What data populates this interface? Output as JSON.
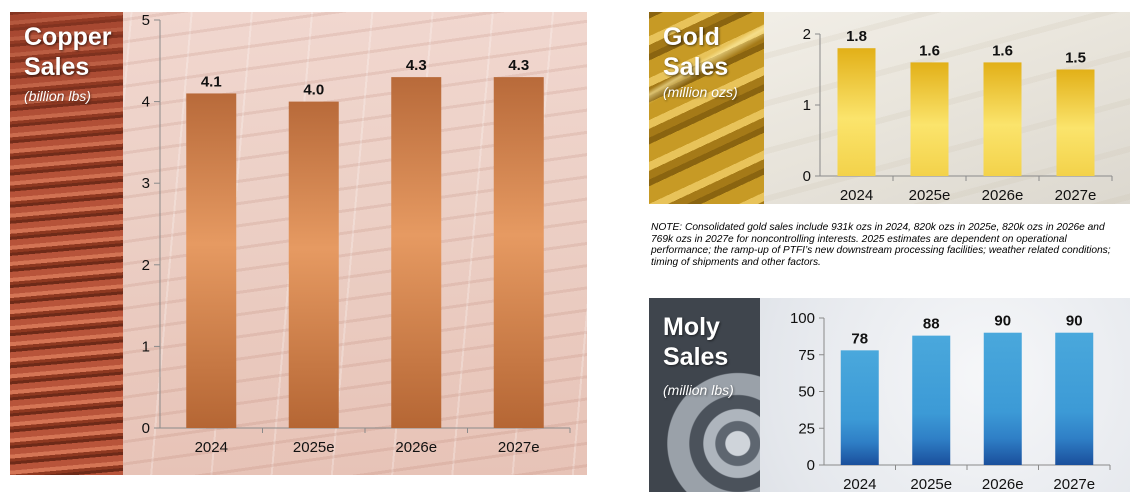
{
  "note": "NOTE: Consolidated gold sales include 931k ozs in 2024, 820k ozs in 2025e, 820k ozs in 2026e and 769k ozs in 2027e for noncontrolling interests. 2025 estimates are dependent on operational performance; the ramp-up of PTFI’s new downstream processing facilities; weather related conditions; timing of shipments and other factors.",
  "panels": {
    "copper": {
      "title_line1": "Copper",
      "title_line2": "Sales",
      "unit": "(billion lbs)"
    },
    "gold": {
      "title_line1": "Gold",
      "title_line2": "Sales",
      "unit": "(million ozs)"
    },
    "moly": {
      "title_line1": "Moly",
      "title_line2": "Sales",
      "unit": "(million lbs)"
    }
  },
  "chart_data": [
    {
      "id": "copper",
      "type": "bar",
      "categories": [
        "2024",
        "2025e",
        "2026e",
        "2027e"
      ],
      "values": [
        4.1,
        4.0,
        4.3,
        4.3
      ],
      "value_labels": [
        "4.1",
        "4.0",
        "4.3",
        "4.3"
      ],
      "ylim": [
        0,
        5
      ],
      "yticks": [
        0,
        1,
        2,
        3,
        4,
        5
      ],
      "bar_color": "#c57a45",
      "bar_color_light": "#e7a06b",
      "bar_color_dark": "#a65a2f",
      "grid": false
    },
    {
      "id": "gold",
      "type": "bar",
      "categories": [
        "2024",
        "2025e",
        "2026e",
        "2027e"
      ],
      "values": [
        1.8,
        1.6,
        1.6,
        1.5
      ],
      "value_labels": [
        "1.8",
        "1.6",
        "1.6",
        "1.5"
      ],
      "ylim": [
        0,
        2
      ],
      "yticks": [
        0,
        1,
        2
      ],
      "bar_color": "#e5b41c",
      "bar_color_light": "#fbe36a",
      "bar_color_dark": "#c79a10",
      "grid": false
    },
    {
      "id": "moly",
      "type": "bar",
      "categories": [
        "2024",
        "2025e",
        "2026e",
        "2027e"
      ],
      "values": [
        78,
        88,
        90,
        90
      ],
      "value_labels": [
        "78",
        "88",
        "90",
        "90"
      ],
      "ylim": [
        0,
        100
      ],
      "yticks": [
        0,
        25,
        50,
        75,
        100
      ],
      "bar_color": "#3aa0d6",
      "bar_color_light": "#7fc8ee",
      "bar_color_dark": "#1a4f9c",
      "grid": false
    }
  ]
}
